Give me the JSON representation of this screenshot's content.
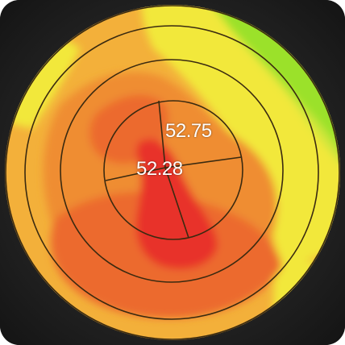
{
  "map": {
    "icon": "corneal-topography-map",
    "colors": {
      "background": "#1c1c1c",
      "green": "#9be12a",
      "yellow_green": "#cfe63a",
      "yellow": "#f2e83a",
      "amber": "#f3b03a",
      "orange": "#ef8d32",
      "dark_orange": "#ec6a2e",
      "red": "#e8332a",
      "ring_stroke": "#3a2a10"
    }
  },
  "readouts": {
    "upper_value": "52.75",
    "center_value": "52.28"
  }
}
